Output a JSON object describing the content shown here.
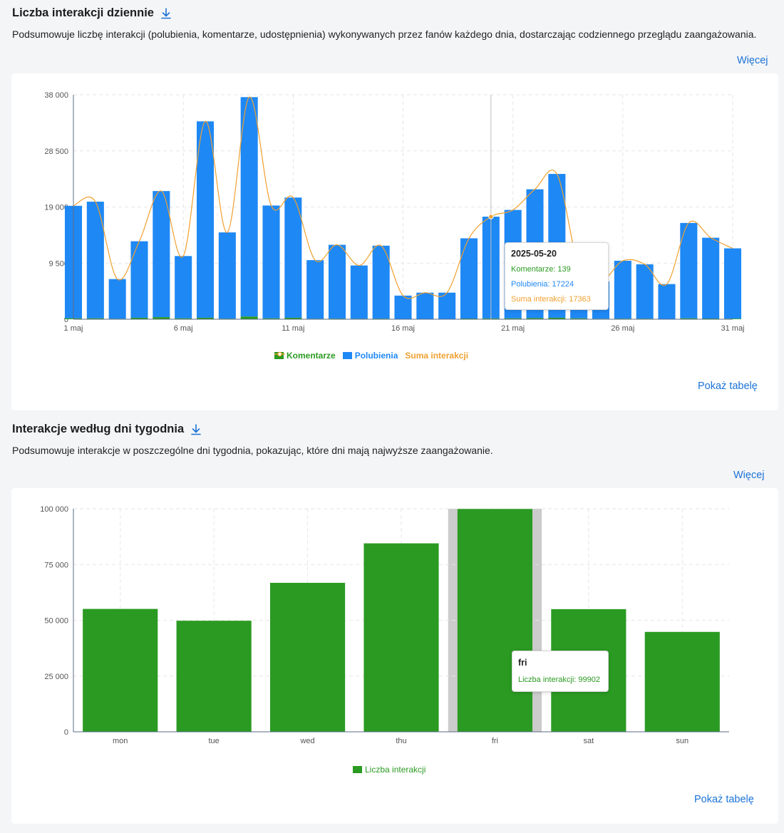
{
  "section1": {
    "title": "Liczba interakcji dziennie",
    "description": "Podsumowuje liczbę interakcji (polubienia, komentarze, udostępnienia) wykonywanych przez fanów każdego dnia, dostarczając codziennego przeglądu zaangażowania.",
    "more_link": "Więcej",
    "show_table": "Pokaż tabelę",
    "download_icon": "download-icon"
  },
  "section2": {
    "title": "Interakcje według dni tygodnia",
    "description": "Podsumowuje interakcje w poszczególne dni tygodnia, pokazując, które dni mają najwyższe zaangażowanie.",
    "more_link": "Więcej",
    "show_table": "Pokaż tabelę",
    "download_icon": "download-icon"
  },
  "colors": {
    "comments": "#2b9a22",
    "likes": "#1e88f5",
    "total": "#f0a030",
    "weekday_bar": "#2b9a22",
    "link": "#1b73d6"
  },
  "tooltip1": {
    "date": "2025-05-20",
    "comments": "Komentarze: 139",
    "likes": "Polubienia: 17224",
    "total": "Suma interakcji: 17363"
  },
  "tooltip2": {
    "day": "fri",
    "value": "Liczba interakcji: 99902"
  },
  "chart_data": [
    {
      "type": "bar",
      "stacked": true,
      "x": [
        "1 maj",
        "2 maj",
        "3 maj",
        "4 maj",
        "5 maj",
        "6 maj",
        "7 maj",
        "8 maj",
        "9 maj",
        "10 maj",
        "11 maj",
        "12 maj",
        "13 maj",
        "14 maj",
        "15 maj",
        "16 maj",
        "17 maj",
        "18 maj",
        "19 maj",
        "20 maj",
        "21 maj",
        "22 maj",
        "23 maj",
        "24 maj",
        "25 maj",
        "26 maj",
        "27 maj",
        "28 maj",
        "29 maj",
        "30 maj",
        "31 maj"
      ],
      "x_tick_labels": [
        "1 maj",
        "6 maj",
        "11 maj",
        "16 maj",
        "21 maj",
        "26 maj",
        "31 maj"
      ],
      "series": [
        {
          "name": "Komentarze",
          "type": "bar",
          "values": [
            150,
            150,
            80,
            250,
            350,
            150,
            250,
            100,
            450,
            150,
            250,
            80,
            100,
            80,
            100,
            40,
            50,
            50,
            120,
            139,
            150,
            200,
            250,
            150,
            80,
            100,
            100,
            50,
            150,
            120,
            100
          ]
        },
        {
          "name": "Polubienia",
          "type": "bar",
          "values": [
            19050,
            19750,
            6720,
            12950,
            21350,
            10550,
            33250,
            14600,
            37150,
            19100,
            20350,
            9920,
            12500,
            9020,
            12350,
            3960,
            4450,
            4450,
            13580,
            17224,
            18350,
            21800,
            24350,
            8800,
            6320,
            9800,
            9200,
            5900,
            16150,
            13680,
            11900
          ]
        },
        {
          "name": "Suma interakcji",
          "type": "line",
          "values": [
            19200,
            19900,
            6800,
            13200,
            21700,
            10700,
            33500,
            14700,
            37600,
            19250,
            20600,
            10000,
            12600,
            9100,
            12450,
            4000,
            4500,
            4500,
            13700,
            17363,
            18500,
            22000,
            24600,
            8950,
            6400,
            9900,
            9300,
            5950,
            16300,
            13800,
            12000
          ]
        }
      ],
      "ylim": [
        0,
        38000
      ],
      "yticks": [
        0,
        9500,
        19000,
        28500,
        38000
      ],
      "ytick_labels": [
        "0",
        "9 500",
        "19 000",
        "28 500",
        "38 000"
      ],
      "grid": true,
      "legend": "bottom"
    },
    {
      "type": "bar",
      "categories": [
        "mon",
        "tue",
        "wed",
        "thu",
        "fri",
        "sat",
        "sun"
      ],
      "series": [
        {
          "name": "Liczba interakcji",
          "values": [
            55100,
            49800,
            66800,
            84500,
            99902,
            55000,
            44800
          ]
        }
      ],
      "ylim": [
        0,
        100000
      ],
      "yticks": [
        0,
        25000,
        50000,
        75000,
        100000
      ],
      "ytick_labels": [
        "0",
        "25 000",
        "50 000",
        "75 000",
        "100 000"
      ],
      "grid": true,
      "legend": "bottom",
      "highlighted": "fri"
    }
  ]
}
